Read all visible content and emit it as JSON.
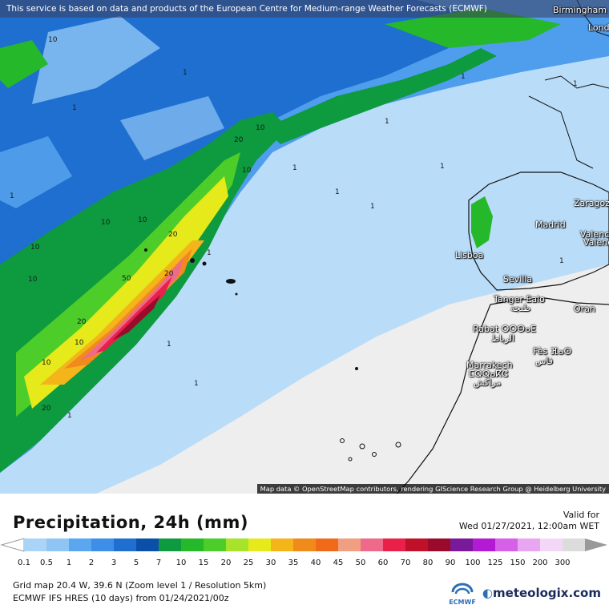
{
  "header": {
    "notice": "This service is based on data and products of the European Centre for Medium-range Weather Forecasts (ECMWF)"
  },
  "attribution": "Map data © OpenStreetMap contributors, rendering GIScience Research Group @ Heidelberg University",
  "cities": {
    "birmingham": "Birmingham",
    "london": "Lond",
    "zaragoza": "Zaragoz",
    "madrid": "Madrid",
    "valencia1": "Valenc",
    "valencia2": "Valenc",
    "lisboa": "Lisboa",
    "sevilla": "Sevilla",
    "tanger1": "Tanger Ealo",
    "tanger2": "طنجة",
    "oran": "Oran",
    "rabat1": "Rabat ⵔⵔⴱⴰⵟ",
    "rabat2": "الرباط",
    "fes1": "Fès ⴼⴰⵙ",
    "fes2": "فاس",
    "marrakech1": "Marrakech",
    "marrakech2": "ⵎⵕⵕⴰⴽⵛ",
    "marrakech3": "مراكش"
  },
  "contour_labels": [
    "10",
    "1",
    "1",
    "10",
    "20",
    "10",
    "10",
    "10",
    "20",
    "10",
    "20",
    "10",
    "50",
    "20",
    "10",
    "10",
    "20",
    "1",
    "1",
    "1",
    "1",
    "1",
    "1",
    "1",
    "1",
    "1",
    "1",
    "1",
    "1",
    "1"
  ],
  "title": "Precipitation, 24h (mm)",
  "valid": {
    "label": "Valid for",
    "time": "Wed 01/27/2021, 12:00am WET"
  },
  "legend": {
    "ticks": [
      "0.1",
      "0.5",
      "1",
      "2",
      "3",
      "5",
      "7",
      "10",
      "15",
      "20",
      "25",
      "30",
      "35",
      "40",
      "45",
      "50",
      "60",
      "70",
      "80",
      "90",
      "100",
      "125",
      "150",
      "200",
      "300"
    ],
    "colors": [
      "#a9d3f7",
      "#8ec5f5",
      "#5aa7ef",
      "#3d8ee6",
      "#1f6fd1",
      "#0c4fa8",
      "#0e9a3f",
      "#25b82a",
      "#4ccd2a",
      "#a6e32a",
      "#e6ea1a",
      "#f3b51a",
      "#f08a1a",
      "#f06a1a",
      "#f0a080",
      "#ef6a8a",
      "#e8204a",
      "#c0102a",
      "#9a0a2a",
      "#7a1a9a",
      "#b21ad4",
      "#d660e8",
      "#e9a6f0",
      "#f2d8f6",
      "#dcdcdc"
    ]
  },
  "info": {
    "line1": "Grid map 20.4 W, 39.6 N (Zoom level 1 / Resolution 5km)",
    "line2": "ECMWF IFS HRES (10 days) from 01/24/2021/00z"
  },
  "logos": {
    "ecmwf": "ECMWF",
    "brand": "meteologix.com"
  }
}
